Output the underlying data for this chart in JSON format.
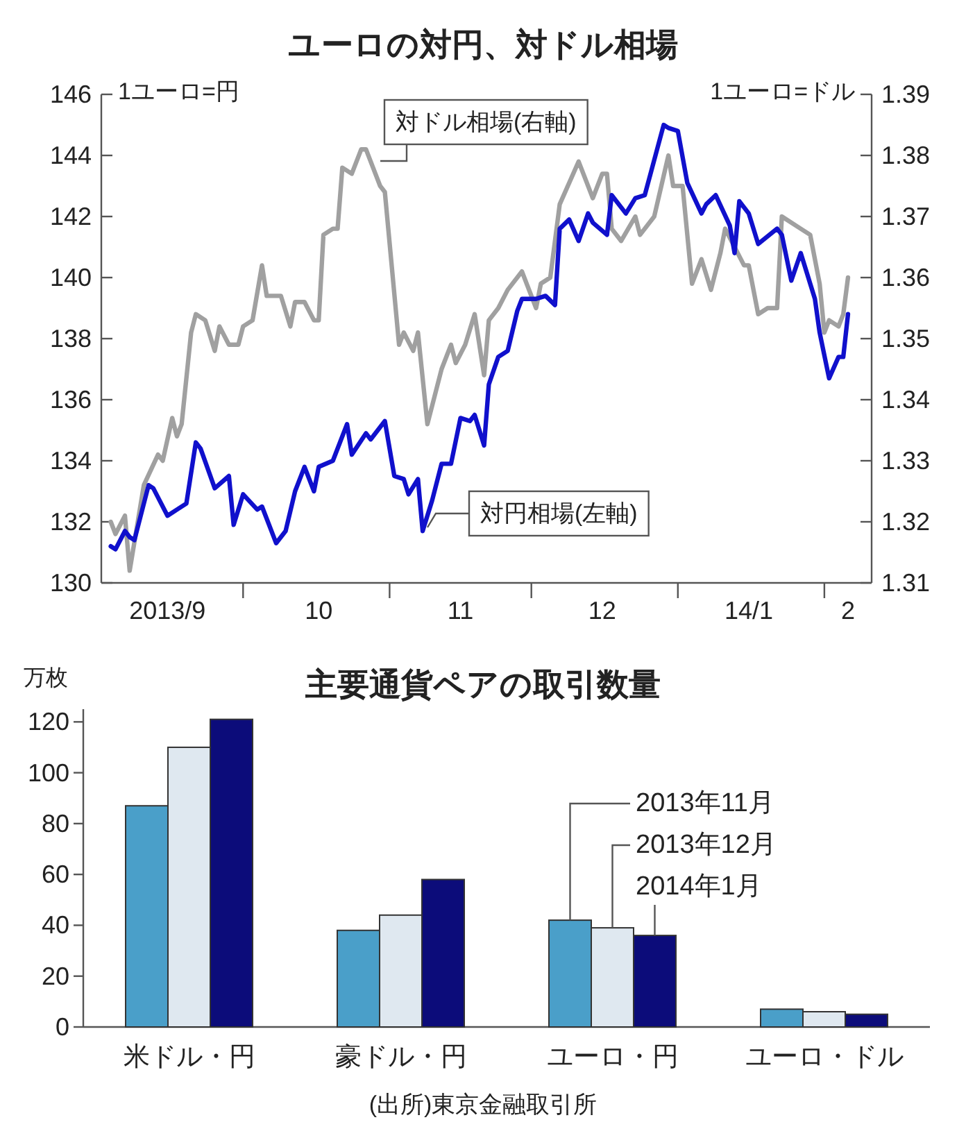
{
  "chart_data": [
    {
      "type": "line",
      "title": "ユーロの対円、対ドル相場",
      "ylabel": "1ユーロ=円",
      "y2label": "1ユーロ=ドル",
      "xlim": [
        "2013-09-01",
        "2014-02-11"
      ],
      "xticks": [
        {
          "value": "2013-10-01",
          "label": null
        },
        {
          "value": "2013-11-01",
          "label": null
        },
        {
          "value": "2013-12-01",
          "label": null
        },
        {
          "value": "2014-01-01",
          "label": null
        },
        {
          "value": "2014-02-01",
          "label": null
        },
        {
          "value": "2013-09-15",
          "label": "2013/9"
        },
        {
          "value": "2013-10-17",
          "label": "10"
        },
        {
          "value": "2013-11-16",
          "label": "11"
        },
        {
          "value": "2013-12-16",
          "label": "12"
        },
        {
          "value": "2014-01-16",
          "label": "14/1"
        },
        {
          "value": "2014-02-06",
          "label": "2"
        }
      ],
      "ylim": [
        130,
        146
      ],
      "yticks": [
        130,
        132,
        134,
        136,
        138,
        140,
        142,
        144,
        146
      ],
      "y2lim": [
        1.31,
        1.39
      ],
      "y2ticks": [
        1.31,
        1.32,
        1.33,
        1.34,
        1.35,
        1.36,
        1.37,
        1.38,
        1.39
      ],
      "series": [
        {
          "name": "対ドル相場(右軸)",
          "color": "#a0a0a0",
          "axis": "y2",
          "x": [
            "2013-09-03",
            "2013-09-04",
            "2013-09-06",
            "2013-09-07",
            "2013-09-10",
            "2013-09-13",
            "2013-09-14",
            "2013-09-16",
            "2013-09-17",
            "2013-09-18",
            "2013-09-20",
            "2013-09-21",
            "2013-09-23",
            "2013-09-25",
            "2013-09-26",
            "2013-09-28",
            "2013-09-30",
            "2013-10-01",
            "2013-10-03",
            "2013-10-05",
            "2013-10-06",
            "2013-10-09",
            "2013-10-11",
            "2013-10-12",
            "2013-10-14",
            "2013-10-16",
            "2013-10-17",
            "2013-10-18",
            "2013-10-20",
            "2013-10-21",
            "2013-10-22",
            "2013-10-24",
            "2013-10-26",
            "2013-10-27",
            "2013-10-30",
            "2013-10-31",
            "2013-11-03",
            "2013-11-04",
            "2013-11-06",
            "2013-11-07",
            "2013-11-09",
            "2013-11-12",
            "2013-11-14",
            "2013-11-15",
            "2013-11-17",
            "2013-11-19",
            "2013-11-21",
            "2013-11-22",
            "2013-11-24",
            "2013-11-26",
            "2013-11-29",
            "2013-12-02",
            "2013-12-03",
            "2013-12-05",
            "2013-12-07",
            "2013-12-11",
            "2013-12-14",
            "2013-12-16",
            "2013-12-17",
            "2013-12-18",
            "2013-12-20",
            "2013-12-23",
            "2013-12-24",
            "2013-12-27",
            "2013-12-30",
            "2013-12-31",
            "2014-01-02",
            "2014-01-04",
            "2014-01-06",
            "2014-01-08",
            "2014-01-10",
            "2014-01-11",
            "2014-01-13",
            "2014-01-15",
            "2014-01-16",
            "2014-01-18",
            "2014-01-20",
            "2014-01-22",
            "2014-01-23",
            "2014-01-27",
            "2014-01-29",
            "2014-01-31",
            "2014-02-01",
            "2014-02-02",
            "2014-02-04",
            "2014-02-05",
            "2014-02-06"
          ],
          "values": [
            1.32,
            1.318,
            1.321,
            1.312,
            1.326,
            1.331,
            1.33,
            1.337,
            1.334,
            1.336,
            1.351,
            1.354,
            1.353,
            1.348,
            1.352,
            1.349,
            1.349,
            1.352,
            1.353,
            1.362,
            1.357,
            1.357,
            1.352,
            1.356,
            1.356,
            1.353,
            1.353,
            1.367,
            1.368,
            1.368,
            1.378,
            1.377,
            1.381,
            1.381,
            1.375,
            1.374,
            1.349,
            1.351,
            1.348,
            1.351,
            1.336,
            1.345,
            1.349,
            1.346,
            1.349,
            1.354,
            1.344,
            1.353,
            1.355,
            1.358,
            1.361,
            1.355,
            1.359,
            1.36,
            1.372,
            1.379,
            1.373,
            1.377,
            1.377,
            1.368,
            1.366,
            1.37,
            1.367,
            1.37,
            1.38,
            1.375,
            1.375,
            1.359,
            1.363,
            1.358,
            1.364,
            1.368,
            1.365,
            1.362,
            1.362,
            1.354,
            1.355,
            1.355,
            1.37,
            1.368,
            1.367,
            1.359,
            1.351,
            1.353,
            1.352,
            1.354,
            1.36
          ]
        },
        {
          "name": "対円相場(左軸)",
          "color": "#1010cc",
          "x": [
            "2013-09-03",
            "2013-09-04",
            "2013-09-06",
            "2013-09-07",
            "2013-09-08",
            "2013-09-11",
            "2013-09-12",
            "2013-09-15",
            "2013-09-19",
            "2013-09-21",
            "2013-09-22",
            "2013-09-25",
            "2013-09-28",
            "2013-09-29",
            "2013-10-01",
            "2013-10-04",
            "2013-10-05",
            "2013-10-08",
            "2013-10-10",
            "2013-10-12",
            "2013-10-14",
            "2013-10-16",
            "2013-10-17",
            "2013-10-20",
            "2013-10-23",
            "2013-10-24",
            "2013-10-27",
            "2013-10-28",
            "2013-10-31",
            "2013-11-02",
            "2013-11-04",
            "2013-11-05",
            "2013-11-07",
            "2013-11-08",
            "2013-11-10",
            "2013-11-12",
            "2013-11-14",
            "2013-11-16",
            "2013-11-18",
            "2013-11-19",
            "2013-11-21",
            "2013-11-22",
            "2013-11-24",
            "2013-11-26",
            "2013-11-28",
            "2013-11-29",
            "2013-12-02",
            "2013-12-04",
            "2013-12-06",
            "2013-12-07",
            "2013-12-09",
            "2013-12-11",
            "2013-12-13",
            "2013-12-14",
            "2013-12-17",
            "2013-12-18",
            "2013-12-21",
            "2013-12-23",
            "2013-12-25",
            "2013-12-29",
            "2013-12-30",
            "2014-01-01",
            "2014-01-03",
            "2014-01-06",
            "2014-01-07",
            "2014-01-09",
            "2014-01-12",
            "2014-01-13",
            "2014-01-14",
            "2014-01-16",
            "2014-01-18",
            "2014-01-22",
            "2014-01-23",
            "2014-01-25",
            "2014-01-27",
            "2014-01-30",
            "2014-01-31",
            "2014-02-02",
            "2014-02-04",
            "2014-02-05",
            "2014-02-06"
          ],
          "values": [
            131.2,
            131.1,
            131.7,
            131.5,
            131.4,
            133.2,
            133.1,
            132.2,
            132.6,
            134.6,
            134.4,
            133.1,
            133.5,
            131.9,
            132.9,
            132.4,
            132.5,
            131.3,
            131.7,
            133.0,
            133.8,
            133.0,
            133.8,
            134.0,
            135.2,
            134.2,
            134.9,
            134.7,
            135.3,
            133.5,
            133.4,
            132.9,
            133.4,
            131.7,
            132.7,
            133.9,
            133.9,
            135.4,
            135.3,
            135.5,
            134.5,
            136.5,
            137.4,
            137.6,
            138.9,
            139.3,
            139.3,
            139.4,
            139.1,
            141.6,
            141.9,
            141.2,
            142.1,
            141.8,
            141.4,
            142.7,
            142.1,
            142.6,
            142.7,
            145.0,
            144.9,
            144.8,
            143.1,
            142.1,
            142.4,
            142.7,
            141.7,
            140.8,
            142.5,
            142.1,
            141.1,
            141.6,
            141.4,
            139.9,
            140.8,
            139.3,
            138.2,
            136.7,
            137.4,
            137.4,
            138.8
          ]
        }
      ]
    },
    {
      "type": "bar",
      "title": "主要通貨ペアの取引数量",
      "ylabel": "万枚",
      "categories": [
        "米ドル・円",
        "豪ドル・円",
        "ユーロ・円",
        "ユーロ・ドル"
      ],
      "ylim": [
        0,
        125
      ],
      "yticks": [
        0,
        20,
        40,
        60,
        80,
        100,
        120
      ],
      "series": [
        {
          "name": "2013年11月",
          "color": "#4a9fc9",
          "values": [
            87,
            38,
            42,
            7
          ]
        },
        {
          "name": "2013年12月",
          "color": "#dfe8f0",
          "values": [
            110,
            44,
            39,
            6
          ]
        },
        {
          "name": "2014年1月",
          "color": "#0c0c7a",
          "values": [
            121,
            58,
            36,
            5
          ]
        }
      ],
      "annotations": [
        "(出所)東京金融取引所"
      ]
    }
  ]
}
